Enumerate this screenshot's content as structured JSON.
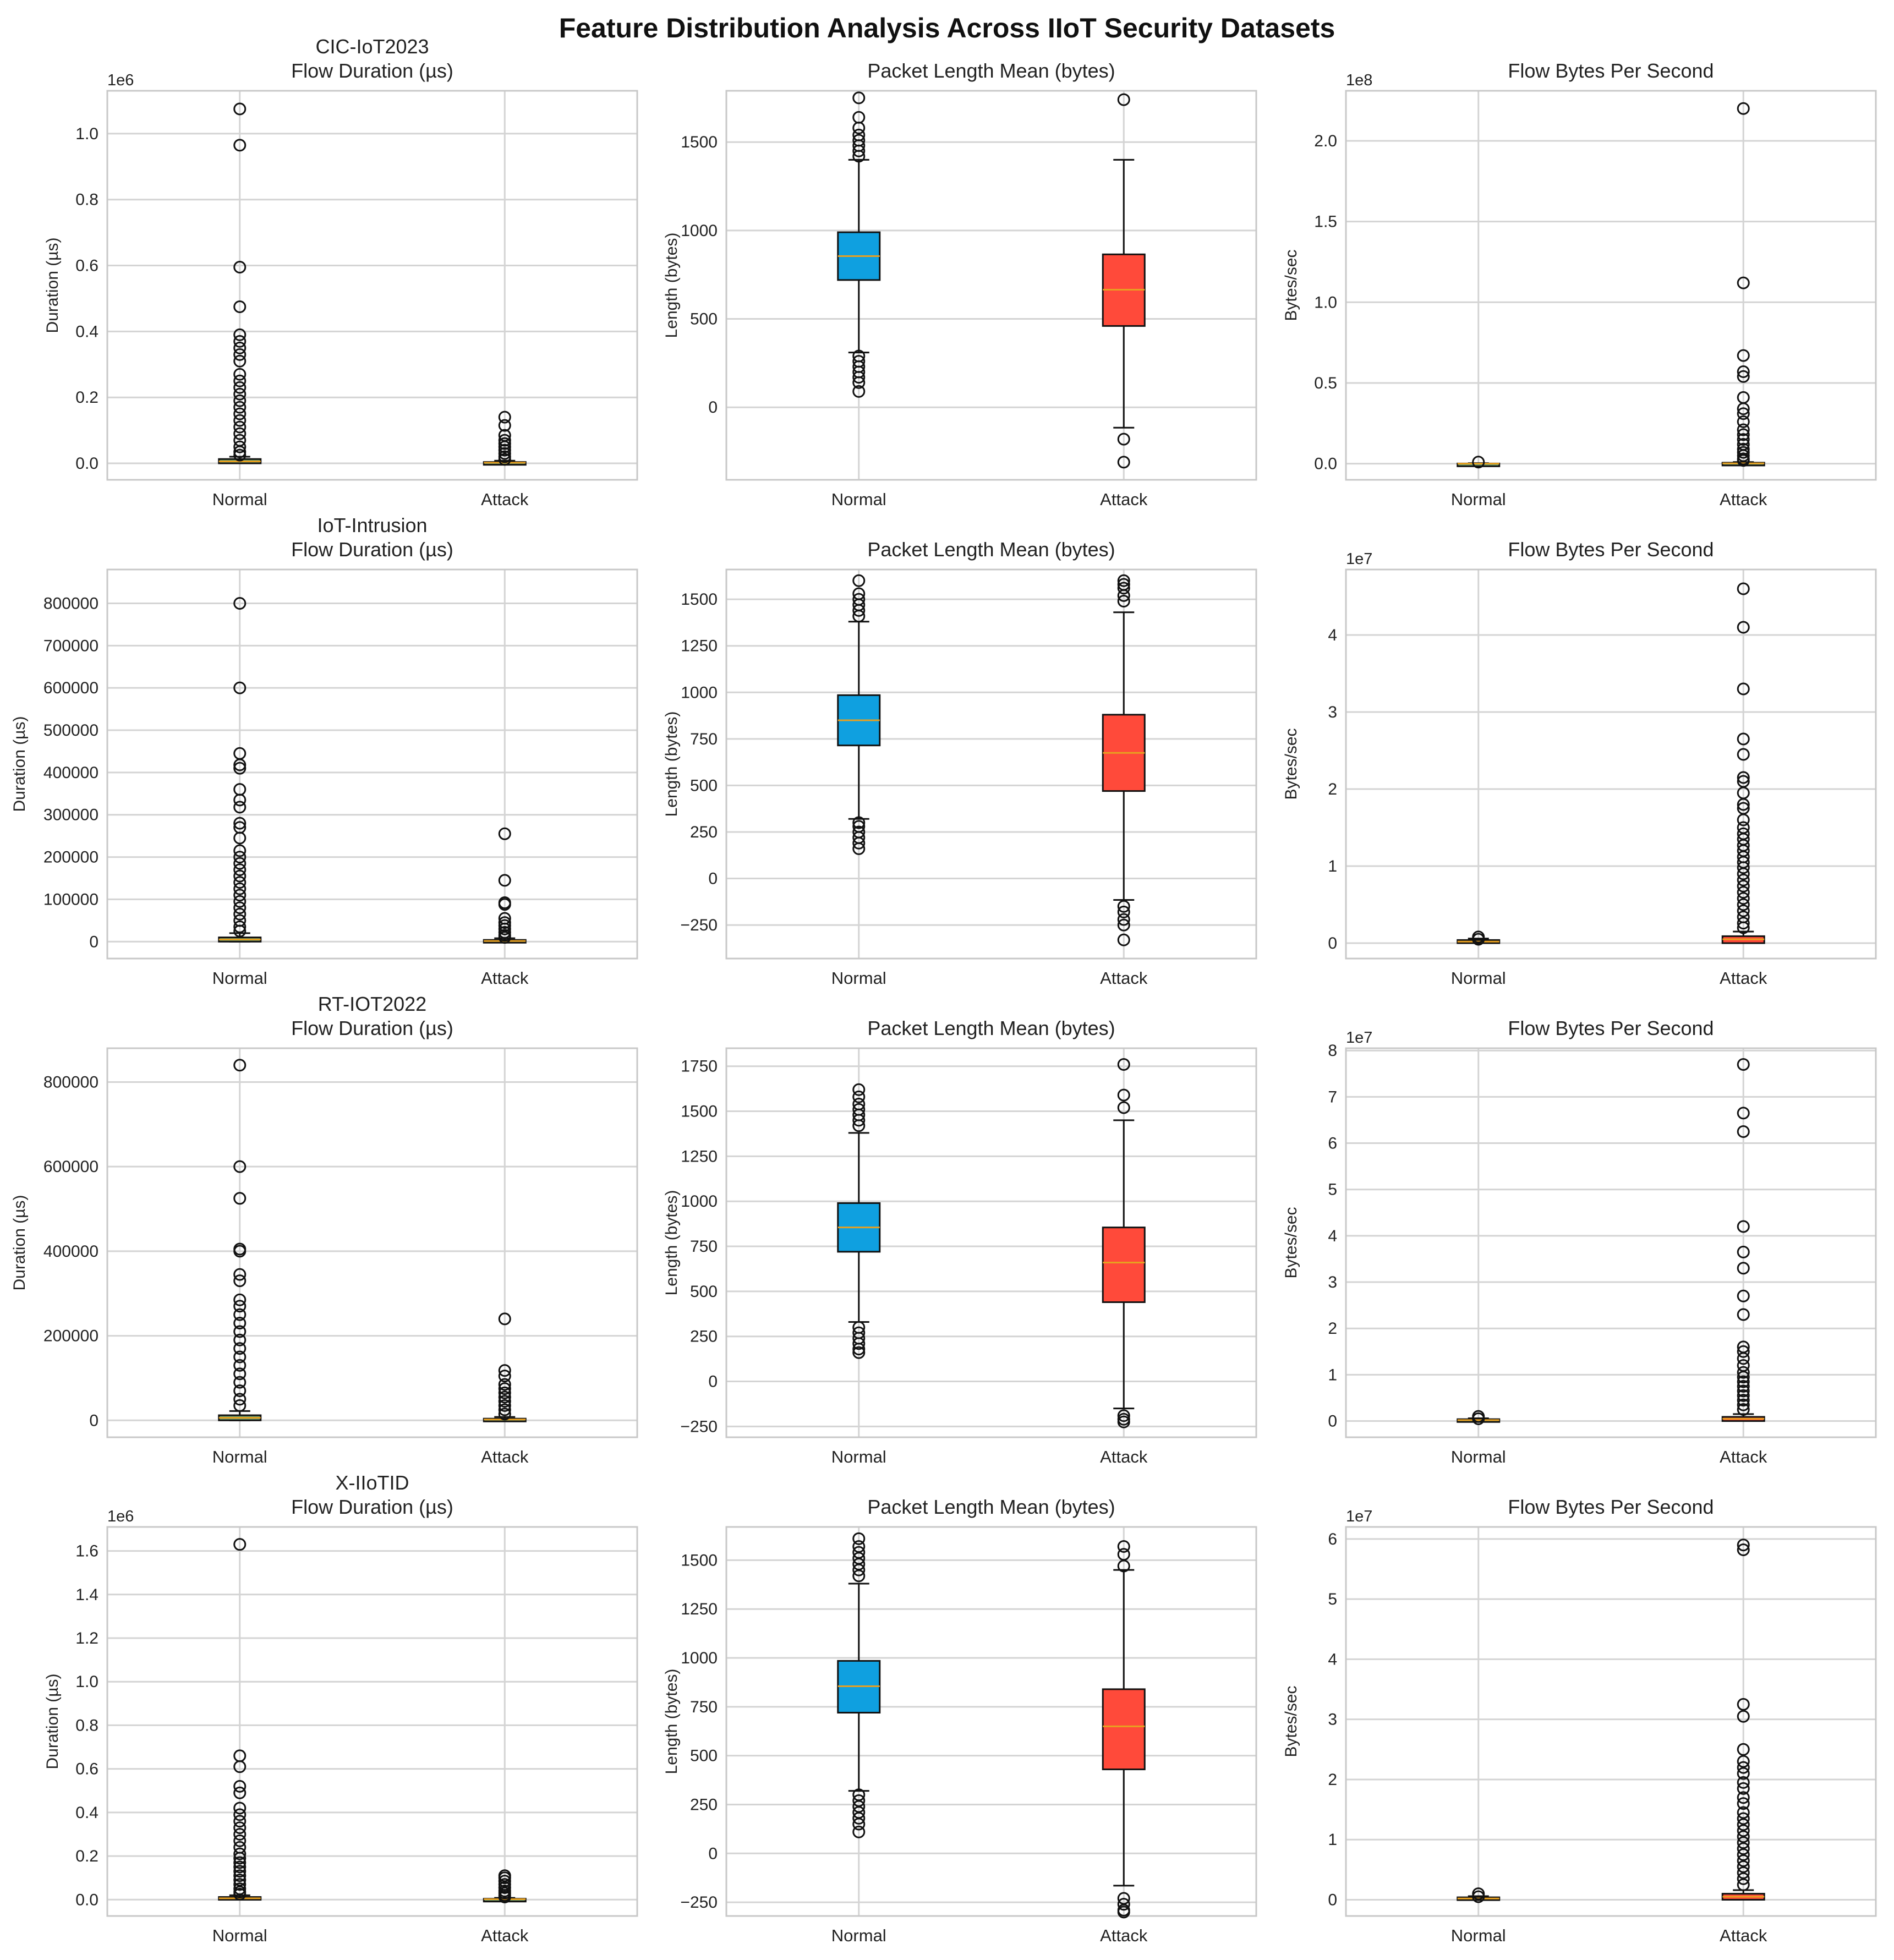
{
  "figure": {
    "title": "Feature Distribution Analysis Across IIoT Security Datasets",
    "colors": {
      "normal_box": "#0fa0e0",
      "attack_box": "#ff4a3a",
      "median": "#e8a020",
      "flat_box": "#6aa070",
      "grid": "#d4d4d4",
      "axis": "#c8c8c8"
    }
  },
  "chart_data": [
    {
      "type": "boxplot",
      "dataset": "CIC-IoT2023",
      "title": "Flow Duration (µs)",
      "ylabel": "Duration (µs)",
      "offset": "1e6",
      "categories": [
        "Normal",
        "Attack"
      ],
      "ylim": [
        -0.05,
        1.13
      ],
      "yticks": [
        0,
        0.2,
        0.4,
        0.6,
        0.8,
        1.0
      ],
      "ytick_labels": [
        "0.0",
        "0.2",
        "0.4",
        "0.6",
        "0.8",
        "1.0"
      ],
      "boxes": [
        {
          "q1": 0.0,
          "median": 0.006,
          "q3": 0.013,
          "whislo": 0,
          "whishi": 0.02,
          "outliers": [
            1.075,
            0.965,
            0.595,
            0.475,
            0.39,
            0.37,
            0.35,
            0.33,
            0.31,
            0.27,
            0.25,
            0.23,
            0.21,
            0.19,
            0.17,
            0.15,
            0.13,
            0.11,
            0.09,
            0.07,
            0.05,
            0.035,
            0.025
          ],
          "color": "flat"
        },
        {
          "q1": 0.0,
          "median": 0.002,
          "q3": 0.004,
          "whislo": 0,
          "whishi": 0.008,
          "outliers": [
            0.14,
            0.115,
            0.085,
            0.07,
            0.06,
            0.05,
            0.04,
            0.03,
            0.02,
            0.012
          ],
          "color": "flat"
        }
      ]
    },
    {
      "type": "boxplot",
      "dataset": "",
      "title": "Packet Length Mean (bytes)",
      "ylabel": "Length (bytes)",
      "offset": "",
      "categories": [
        "Normal",
        "Attack"
      ],
      "ylim": [
        -410,
        1790
      ],
      "yticks": [
        0,
        500,
        1000,
        1500
      ],
      "ytick_labels": [
        "0",
        "500",
        "1000",
        "1500"
      ],
      "boxes": [
        {
          "q1": 720,
          "median": 855,
          "q3": 990,
          "whislo": 310,
          "whishi": 1400,
          "outliers": [
            1750,
            1640,
            1580,
            1540,
            1510,
            1480,
            1450,
            1420,
            290,
            260,
            230,
            200,
            170,
            140,
            90
          ],
          "color": "normal"
        },
        {
          "q1": 460,
          "median": 665,
          "q3": 865,
          "whislo": -115,
          "whishi": 1400,
          "outliers": [
            1740,
            -180,
            -310
          ],
          "color": "attack"
        }
      ]
    },
    {
      "type": "boxplot",
      "dataset": "",
      "title": "Flow Bytes Per Second",
      "ylabel": "Bytes/sec",
      "offset": "1e8",
      "categories": [
        "Normal",
        "Attack"
      ],
      "ylim": [
        -0.1,
        2.31
      ],
      "yticks": [
        0,
        0.5,
        1.0,
        1.5,
        2.0
      ],
      "ytick_labels": [
        "0.0",
        "0.5",
        "1.0",
        "1.5",
        "2.0"
      ],
      "boxes": [
        {
          "q1": 0,
          "median": 0,
          "q3": 0.001,
          "whislo": 0,
          "whishi": 0.003,
          "outliers": [
            0.01
          ],
          "color": "flat"
        },
        {
          "q1": 0,
          "median": 0.002,
          "q3": 0.006,
          "whislo": 0,
          "whishi": 0.01,
          "outliers": [
            2.2,
            1.12,
            0.67,
            0.57,
            0.54,
            0.41,
            0.34,
            0.31,
            0.26,
            0.21,
            0.18,
            0.15,
            0.12,
            0.09,
            0.07,
            0.05,
            0.03,
            0.02
          ],
          "color": "flat"
        }
      ]
    },
    {
      "type": "boxplot",
      "dataset": "IoT-Intrusion",
      "title": "Flow Duration (µs)",
      "ylabel": "Duration (µs)",
      "offset": "",
      "categories": [
        "Normal",
        "Attack"
      ],
      "ylim": [
        -40000,
        880000
      ],
      "yticks": [
        0,
        100000,
        200000,
        300000,
        400000,
        500000,
        600000,
        700000,
        800000
      ],
      "ytick_labels": [
        "0",
        "100000",
        "200000",
        "300000",
        "400000",
        "500000",
        "600000",
        "700000",
        "800000"
      ],
      "boxes": [
        {
          "q1": 0,
          "median": 5000,
          "q3": 10000,
          "whislo": 0,
          "whishi": 20000,
          "outliers": [
            800000,
            600000,
            445000,
            418000,
            410000,
            360000,
            335000,
            318000,
            280000,
            270000,
            245000,
            215000,
            200000,
            185000,
            170000,
            155000,
            140000,
            125000,
            110000,
            95000,
            80000,
            65000,
            50000,
            35000,
            25000
          ],
          "color": "flat"
        },
        {
          "q1": 0,
          "median": 1500,
          "q3": 4000,
          "whislo": 0,
          "whishi": 8000,
          "outliers": [
            255000,
            145000,
            92000,
            88000,
            55000,
            45000,
            38000,
            30000,
            22000,
            15000,
            10000
          ],
          "color": "flat"
        }
      ]
    },
    {
      "type": "boxplot",
      "dataset": "",
      "title": "Packet Length Mean (bytes)",
      "ylabel": "Length (bytes)",
      "offset": "",
      "categories": [
        "Normal",
        "Attack"
      ],
      "ylim": [
        -430,
        1660
      ],
      "yticks": [
        -250,
        0,
        250,
        500,
        750,
        1000,
        1250,
        1500
      ],
      "ytick_labels": [
        "−250",
        "0",
        "250",
        "500",
        "750",
        "1000",
        "1250",
        "1500"
      ],
      "boxes": [
        {
          "q1": 715,
          "median": 850,
          "q3": 985,
          "whislo": 320,
          "whishi": 1380,
          "outliers": [
            1600,
            1530,
            1500,
            1470,
            1440,
            1410,
            300,
            280,
            250,
            220,
            190,
            160
          ],
          "color": "normal"
        },
        {
          "q1": 470,
          "median": 675,
          "q3": 880,
          "whislo": -115,
          "whishi": 1430,
          "outliers": [
            1600,
            1580,
            1560,
            1520,
            1490,
            -150,
            -180,
            -220,
            -250,
            -330
          ],
          "color": "attack"
        }
      ]
    },
    {
      "type": "boxplot",
      "dataset": "",
      "title": "Flow Bytes Per Second",
      "ylabel": "Bytes/sec",
      "offset": "1e7",
      "categories": [
        "Normal",
        "Attack"
      ],
      "ylim": [
        -0.2,
        4.85
      ],
      "yticks": [
        0,
        1,
        2,
        3,
        4
      ],
      "ytick_labels": [
        "0",
        "1",
        "2",
        "3",
        "4"
      ],
      "boxes": [
        {
          "q1": 0,
          "median": 0.02,
          "q3": 0.04,
          "whislo": 0,
          "whishi": 0.06,
          "outliers": [
            0.08,
            0.05
          ],
          "color": "flat"
        },
        {
          "q1": 0,
          "median": 0.05,
          "q3": 0.09,
          "whislo": 0,
          "whishi": 0.15,
          "outliers": [
            4.6,
            4.1,
            3.3,
            2.65,
            2.45,
            2.15,
            2.1,
            1.95,
            1.8,
            1.75,
            1.6,
            1.5,
            1.42,
            1.35,
            1.27,
            1.2,
            1.12,
            1.05,
            0.98,
            0.9,
            0.82,
            0.74,
            0.66,
            0.58,
            0.5,
            0.42,
            0.34,
            0.26,
            0.2
          ],
          "color": "attack"
        }
      ]
    },
    {
      "type": "boxplot",
      "dataset": "RT-IOT2022",
      "title": "Flow Duration (µs)",
      "ylabel": "Duration (µs)",
      "offset": "",
      "categories": [
        "Normal",
        "Attack"
      ],
      "ylim": [
        -40000,
        880000
      ],
      "yticks": [
        0,
        200000,
        400000,
        600000,
        800000
      ],
      "ytick_labels": [
        "0",
        "200000",
        "400000",
        "600000",
        "800000"
      ],
      "boxes": [
        {
          "q1": 0,
          "median": 6000,
          "q3": 12000,
          "whislo": 0,
          "whishi": 22000,
          "outliers": [
            840000,
            600000,
            525000,
            405000,
            400000,
            345000,
            330000,
            285000,
            270000,
            250000,
            230000,
            210000,
            190000,
            170000,
            150000,
            130000,
            110000,
            90000,
            70000,
            50000,
            35000
          ],
          "color": "flat"
        },
        {
          "q1": 0,
          "median": 2000,
          "q3": 4000,
          "whislo": 0,
          "whishi": 8000,
          "outliers": [
            240000,
            118000,
            105000,
            85000,
            75000,
            65000,
            55000,
            45000,
            35000,
            25000,
            15000
          ],
          "color": "flat"
        }
      ]
    },
    {
      "type": "boxplot",
      "dataset": "",
      "title": "Packet Length Mean (bytes)",
      "ylabel": "Length (bytes)",
      "offset": "",
      "categories": [
        "Normal",
        "Attack"
      ],
      "ylim": [
        -310,
        1850
      ],
      "yticks": [
        -250,
        0,
        250,
        500,
        750,
        1000,
        1250,
        1500,
        1750
      ],
      "ytick_labels": [
        "−250",
        "0",
        "250",
        "500",
        "750",
        "1000",
        "1250",
        "1500",
        "1750"
      ],
      "boxes": [
        {
          "q1": 720,
          "median": 855,
          "q3": 990,
          "whislo": 330,
          "whishi": 1380,
          "outliers": [
            1620,
            1580,
            1540,
            1510,
            1480,
            1450,
            1420,
            300,
            270,
            240,
            210,
            180,
            160
          ],
          "color": "normal"
        },
        {
          "q1": 440,
          "median": 660,
          "q3": 855,
          "whislo": -150,
          "whishi": 1450,
          "outliers": [
            1760,
            1590,
            1520,
            -190,
            -210,
            -225
          ],
          "color": "attack"
        }
      ]
    },
    {
      "type": "boxplot",
      "dataset": "",
      "title": "Flow Bytes Per Second",
      "ylabel": "Bytes/sec",
      "offset": "1e7",
      "categories": [
        "Normal",
        "Attack"
      ],
      "ylim": [
        -0.35,
        8.05
      ],
      "yticks": [
        0,
        1,
        2,
        3,
        4,
        5,
        6,
        7,
        8
      ],
      "ytick_labels": [
        "0",
        "1",
        "2",
        "3",
        "4",
        "5",
        "6",
        "7",
        "8"
      ],
      "boxes": [
        {
          "q1": 0,
          "median": 0.02,
          "q3": 0.04,
          "whislo": 0,
          "whishi": 0.06,
          "outliers": [
            0.1,
            0.05
          ],
          "color": "flat"
        },
        {
          "q1": 0,
          "median": 0.05,
          "q3": 0.09,
          "whislo": 0,
          "whishi": 0.15,
          "outliers": [
            7.7,
            6.65,
            6.25,
            4.2,
            3.65,
            3.3,
            2.7,
            2.3,
            1.6,
            1.5,
            1.35,
            1.2,
            1.05,
            0.95,
            0.85,
            0.75,
            0.65,
            0.55,
            0.45,
            0.35,
            0.25
          ],
          "color": "attack"
        }
      ]
    },
    {
      "type": "boxplot",
      "dataset": "X-IIoTID",
      "title": "Flow Duration (µs)",
      "ylabel": "Duration (µs)",
      "offset": "1e6",
      "categories": [
        "Normal",
        "Attack"
      ],
      "ylim": [
        -0.075,
        1.71
      ],
      "yticks": [
        0,
        0.2,
        0.4,
        0.6,
        0.8,
        1.0,
        1.2,
        1.4,
        1.6
      ],
      "ytick_labels": [
        "0.0",
        "0.2",
        "0.4",
        "0.6",
        "0.8",
        "1.0",
        "1.2",
        "1.4",
        "1.6"
      ],
      "boxes": [
        {
          "q1": 0,
          "median": 0.006,
          "q3": 0.012,
          "whislo": 0,
          "whishi": 0.02,
          "outliers": [
            1.63,
            0.66,
            0.61,
            0.52,
            0.49,
            0.42,
            0.39,
            0.36,
            0.33,
            0.3,
            0.27,
            0.24,
            0.21,
            0.19,
            0.17,
            0.15,
            0.13,
            0.11,
            0.09,
            0.07,
            0.05,
            0.035,
            0.025
          ],
          "color": "flat"
        },
        {
          "q1": 0,
          "median": 0.002,
          "q3": 0.004,
          "whislo": 0,
          "whishi": 0.008,
          "outliers": [
            0.11,
            0.1,
            0.085,
            0.07,
            0.055,
            0.04,
            0.03,
            0.02,
            0.012
          ],
          "color": "flat"
        }
      ]
    },
    {
      "type": "boxplot",
      "dataset": "",
      "title": "Packet Length Mean (bytes)",
      "ylabel": "Length (bytes)",
      "offset": "",
      "categories": [
        "Normal",
        "Attack"
      ],
      "ylim": [
        -320,
        1670
      ],
      "yticks": [
        -250,
        0,
        250,
        500,
        750,
        1000,
        1250,
        1500
      ],
      "ytick_labels": [
        "−250",
        "0",
        "250",
        "500",
        "750",
        "1000",
        "1250",
        "1500"
      ],
      "boxes": [
        {
          "q1": 720,
          "median": 855,
          "q3": 985,
          "whislo": 320,
          "whishi": 1380,
          "outliers": [
            1610,
            1570,
            1540,
            1510,
            1480,
            1450,
            1420,
            300,
            270,
            240,
            210,
            180,
            150,
            110
          ],
          "color": "normal"
        },
        {
          "q1": 430,
          "median": 650,
          "q3": 840,
          "whislo": -165,
          "whishi": 1450,
          "outliers": [
            1570,
            1530,
            1470,
            -230,
            -260,
            -290,
            -300
          ],
          "color": "attack"
        }
      ]
    },
    {
      "type": "boxplot",
      "dataset": "",
      "title": "Flow Bytes Per Second",
      "ylabel": "Bytes/sec",
      "offset": "1e7",
      "categories": [
        "Normal",
        "Attack"
      ],
      "ylim": [
        -0.27,
        6.2
      ],
      "yticks": [
        0,
        1,
        2,
        3,
        4,
        5,
        6
      ],
      "ytick_labels": [
        "0",
        "1",
        "2",
        "3",
        "4",
        "5",
        "6"
      ],
      "boxes": [
        {
          "q1": 0,
          "median": 0.02,
          "q3": 0.04,
          "whislo": 0,
          "whishi": 0.06,
          "outliers": [
            0.1,
            0.05
          ],
          "color": "flat"
        },
        {
          "q1": 0,
          "median": 0.05,
          "q3": 0.1,
          "whislo": 0,
          "whishi": 0.16,
          "outliers": [
            5.9,
            5.82,
            3.25,
            3.05,
            2.5,
            2.3,
            2.2,
            2.1,
            1.95,
            1.85,
            1.7,
            1.6,
            1.45,
            1.35,
            1.25,
            1.15,
            1.05,
            0.95,
            0.85,
            0.75,
            0.65,
            0.55,
            0.45,
            0.35,
            0.25
          ],
          "color": "attack"
        }
      ]
    }
  ]
}
